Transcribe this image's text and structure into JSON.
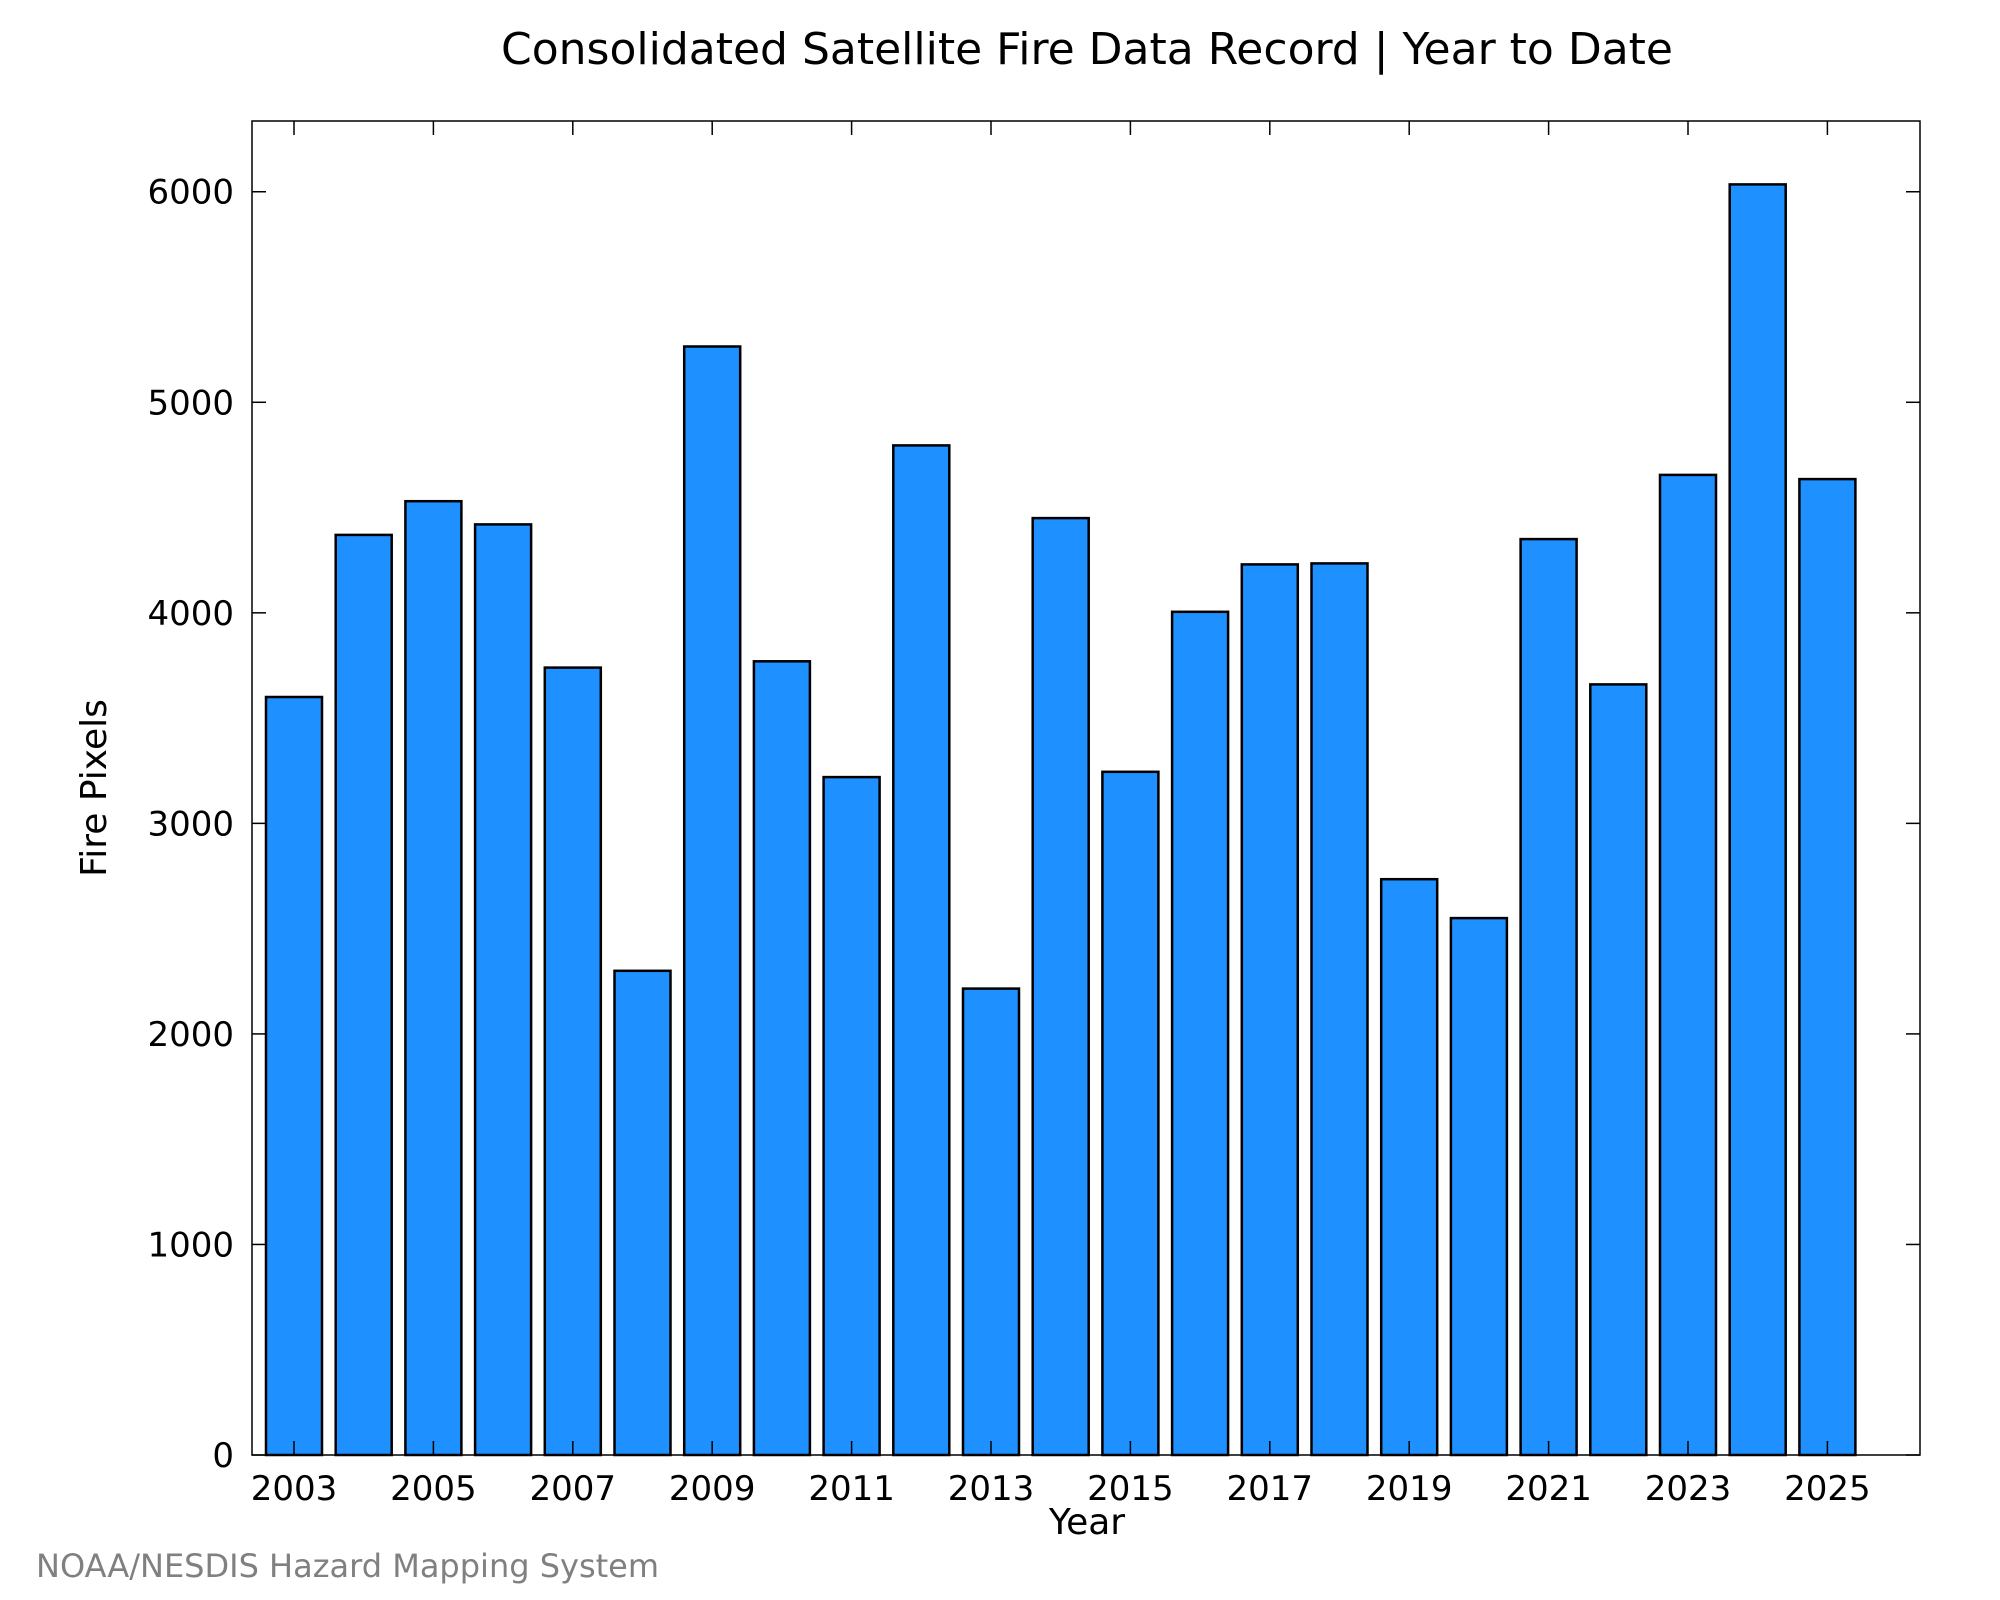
{
  "chart_data": {
    "type": "bar",
    "title": "Consolidated Satellite Fire Data Record | Year to Date",
    "xlabel": "Year",
    "ylabel": "Fire Pixels",
    "categories": [
      "2003",
      "2004",
      "2005",
      "2006",
      "2007",
      "2008",
      "2009",
      "2010",
      "2011",
      "2012",
      "2013",
      "2014",
      "2015",
      "2016",
      "2017",
      "2018",
      "2019",
      "2020",
      "2021",
      "2022",
      "2023",
      "2024",
      "2025"
    ],
    "values": [
      3600,
      4370,
      4530,
      4420,
      3740,
      2300,
      5265,
      3770,
      3220,
      4795,
      2215,
      4450,
      3245,
      4005,
      4230,
      4235,
      2735,
      2550,
      4350,
      3660,
      4655,
      6035,
      4635
    ],
    "x_tick_labels": [
      "2003",
      "2005",
      "2007",
      "2009",
      "2011",
      "2013",
      "2015",
      "2017",
      "2019",
      "2021",
      "2023",
      "2025"
    ],
    "y_tick_labels": [
      "0",
      "1000",
      "2000",
      "3000",
      "4000",
      "5000",
      "6000"
    ],
    "ylim": [
      0,
      6336
    ],
    "bar_color": "#1e90ff",
    "edge_color": "#000000",
    "grid": false,
    "legend": "none"
  },
  "footer": {
    "credit": "NOAA/NESDIS Hazard Mapping System"
  }
}
